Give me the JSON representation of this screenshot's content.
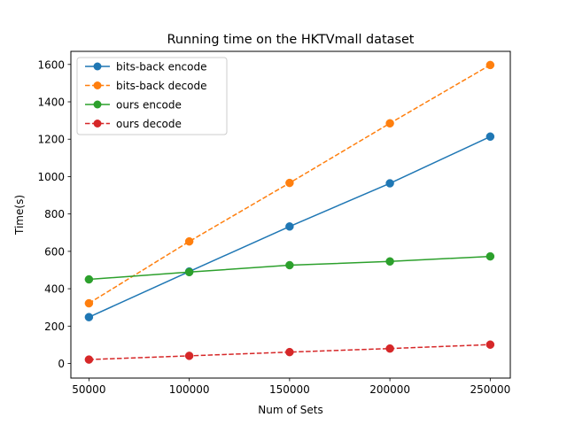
{
  "chart_data": {
    "type": "line",
    "title": "Running time on the HKTVmall dataset",
    "xlabel": "Num of Sets",
    "ylabel": "Time(s)",
    "x": [
      50000,
      100000,
      150000,
      200000,
      250000
    ],
    "x_ticks": [
      "50000",
      "100000",
      "150000",
      "200000",
      "250000"
    ],
    "y_ticks": [
      "0",
      "200",
      "400",
      "600",
      "800",
      "1000",
      "1200",
      "1400",
      "1600"
    ],
    "xlim": [
      41000,
      260000
    ],
    "ylim": [
      -78,
      1670
    ],
    "grid": false,
    "legend_position": "top-left",
    "series": [
      {
        "name": "bits-back encode",
        "values": [
          248,
          492,
          733,
          964,
          1214
        ],
        "color": "#1f77b4",
        "linestyle": "solid",
        "marker": "circle"
      },
      {
        "name": "bits-back decode",
        "values": [
          322,
          653,
          966,
          1285,
          1597
        ],
        "color": "#ff7f0e",
        "linestyle": "dashed",
        "marker": "circle"
      },
      {
        "name": "ours encode",
        "values": [
          450,
          489,
          526,
          546,
          573
        ],
        "color": "#2ca02c",
        "linestyle": "solid",
        "marker": "circle"
      },
      {
        "name": "ours decode",
        "values": [
          21,
          41,
          61,
          80,
          101
        ],
        "color": "#d62728",
        "linestyle": "dashed",
        "marker": "circle"
      }
    ]
  }
}
